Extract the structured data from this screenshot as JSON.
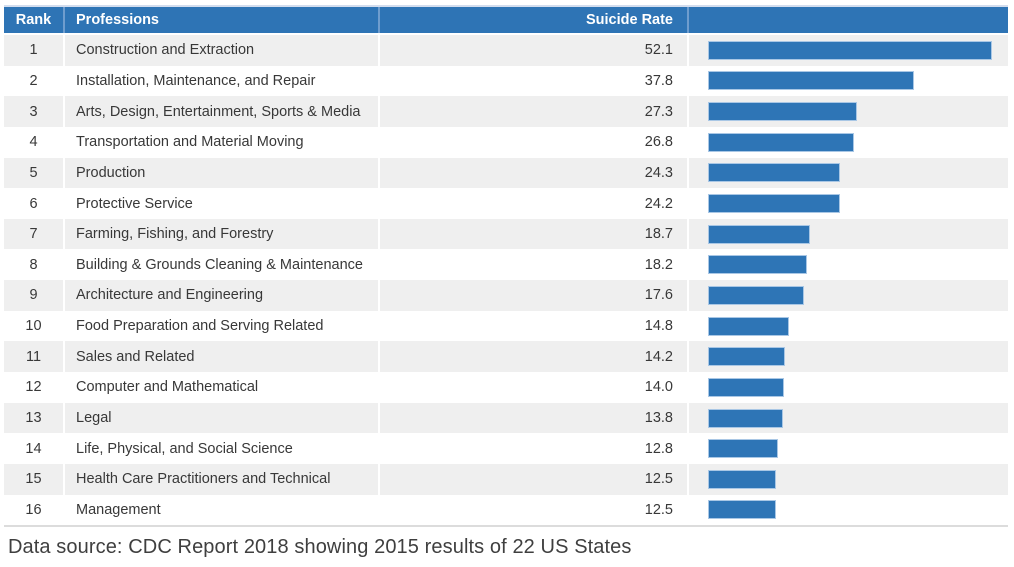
{
  "header": {
    "rank_label": "Rank",
    "professions_label": "Professions",
    "rate_label": "Suicide Rate"
  },
  "rows": [
    {
      "rank": "1",
      "profession": "Construction and Extraction",
      "rate": "52.1"
    },
    {
      "rank": "2",
      "profession": "Installation, Maintenance, and Repair",
      "rate": "37.8"
    },
    {
      "rank": "3",
      "profession": "Arts, Design, Entertainment, Sports & Media",
      "rate": "27.3"
    },
    {
      "rank": "4",
      "profession": "Transportation and Material Moving",
      "rate": "26.8"
    },
    {
      "rank": "5",
      "profession": "Production",
      "rate": "24.3"
    },
    {
      "rank": "6",
      "profession": "Protective Service",
      "rate": "24.2"
    },
    {
      "rank": "7",
      "profession": "Farming, Fishing, and Forestry",
      "rate": "18.7"
    },
    {
      "rank": "8",
      "profession": "Building & Grounds Cleaning & Maintenance",
      "rate": "18.2"
    },
    {
      "rank": "9",
      "profession": "Architecture and Engineering",
      "rate": "17.6"
    },
    {
      "rank": "10",
      "profession": "Food Preparation and Serving Related",
      "rate": "14.8"
    },
    {
      "rank": "11",
      "profession": "Sales and Related",
      "rate": "14.2"
    },
    {
      "rank": "12",
      "profession": "Computer and Mathematical",
      "rate": "14.0"
    },
    {
      "rank": "13",
      "profession": "Legal",
      "rate": "13.8"
    },
    {
      "rank": "14",
      "profession": "Life, Physical, and Social Science",
      "rate": "12.8"
    },
    {
      "rank": "15",
      "profession": "Health Care Practitioners and Technical",
      "rate": "12.5"
    },
    {
      "rank": "16",
      "profession": "Management",
      "rate": "12.5"
    }
  ],
  "chart_data": {
    "type": "bar",
    "orientation": "horizontal",
    "title": "",
    "xlabel": "Suicide Rate",
    "ylabel": "Professions",
    "categories": [
      "Construction and Extraction",
      "Installation, Maintenance, and Repair",
      "Arts, Design, Entertainment, Sports & Media",
      "Transportation and Material Moving",
      "Production",
      "Protective Service",
      "Farming, Fishing, and Forestry",
      "Building & Grounds Cleaning & Maintenance",
      "Architecture and Engineering",
      "Food Preparation and Serving Related",
      "Sales and Related",
      "Computer and Mathematical",
      "Legal",
      "Life, Physical, and Social Science",
      "Health Care Practitioners and Technical",
      "Management"
    ],
    "ranks": [
      1,
      2,
      3,
      4,
      5,
      6,
      7,
      8,
      9,
      10,
      11,
      12,
      13,
      14,
      15,
      16
    ],
    "values": [
      52.1,
      37.8,
      27.3,
      26.8,
      24.3,
      24.2,
      18.7,
      18.2,
      17.6,
      14.8,
      14.2,
      14.0,
      13.8,
      12.8,
      12.5,
      12.5
    ],
    "xlim": [
      0,
      55
    ],
    "grid": false,
    "legend": false,
    "bar_color": "#2E75B6",
    "header_color": "#2E74B5",
    "alt_row_color": "#EFEFEF"
  },
  "footer": {
    "source_note": "Data source: CDC Report 2018 showing 2015 results of 22 US States"
  }
}
